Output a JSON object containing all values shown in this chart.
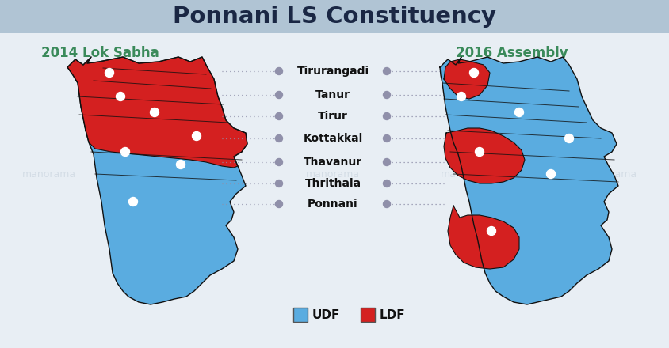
{
  "title": "Ponnani LS Constituency",
  "title_bg_color": "#b0c4d4",
  "title_text_color": "#1a2744",
  "bg_color": "#e8eef4",
  "left_subtitle": "2014 Lok Sabha",
  "right_subtitle": "2016 Assembly",
  "subtitle_color": "#3a8a5a",
  "label_names": [
    "Tirurangadi",
    "Tanur",
    "Tirur",
    "Kottakkal",
    "Thavanur",
    "Thrithala",
    "Ponnani"
  ],
  "udf_color": "#5aace0",
  "ldf_color": "#d42020",
  "border_color": "#111111",
  "dot_color": "#9090aa",
  "dot_line_color": "#9090aa",
  "white_dot_color": "#ffffff",
  "legend_udf": "UDF",
  "legend_ldf": "LDF"
}
